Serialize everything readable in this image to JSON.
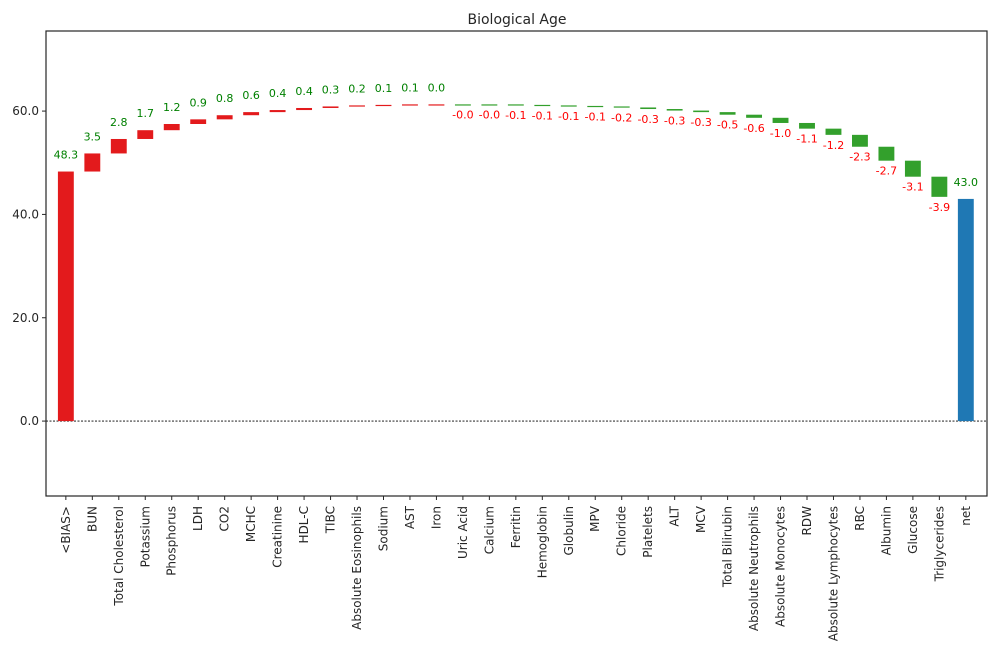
{
  "chart_data": {
    "type": "bar",
    "title": "Biological Age",
    "xlabel": "",
    "ylabel": "",
    "ylim": [
      -14.5,
      75.5
    ],
    "yticks": [
      0,
      20,
      40,
      60
    ],
    "ytick_labels": [
      "0.0",
      "20.0",
      "40.0",
      "60.0"
    ],
    "grid": false,
    "legend": "none",
    "baseline": {
      "y": 0,
      "style": "dotted"
    },
    "colors": {
      "positive": "#e31a1c",
      "negative": "#33a02c",
      "total": "#1f78b4",
      "positive_label": "#008000",
      "negative_label": "#ff0000"
    },
    "categories": [
      "<BIAS>",
      "BUN",
      "Total Cholesterol",
      "Potassium",
      "Phosphorus",
      "LDH",
      "CO2",
      "MCHC",
      "Creatinine",
      "HDL-C",
      "TIBC",
      "Absolute Eosinophils",
      "Sodium",
      "AST",
      "Iron",
      "Uric Acid",
      "Calcium",
      "Ferritin",
      "Hemoglobin",
      "Globulin",
      "MPV",
      "Chloride",
      "Platelets",
      "ALT",
      "MCV",
      "Total Bilirubin",
      "Absolute Neutrophils",
      "Absolute Monocytes",
      "RDW",
      "Absolute Lymphocytes",
      "RBC",
      "Albumin",
      "Glucose",
      "Triglycerides",
      "net"
    ],
    "values": [
      48.3,
      3.5,
      2.8,
      1.7,
      1.2,
      0.9,
      0.8,
      0.6,
      0.4,
      0.4,
      0.3,
      0.2,
      0.1,
      0.1,
      0.0,
      -0.0,
      -0.0,
      -0.1,
      -0.1,
      -0.1,
      -0.1,
      -0.2,
      -0.3,
      -0.3,
      -0.3,
      -0.5,
      -0.6,
      -1.0,
      -1.1,
      -1.2,
      -2.3,
      -2.7,
      -3.1,
      -3.9,
      43.0
    ],
    "labels": [
      "48.3",
      "3.5",
      "2.8",
      "1.7",
      "1.2",
      "0.9",
      "0.8",
      "0.6",
      "0.4",
      "0.4",
      "0.3",
      "0.2",
      "0.1",
      "0.1",
      "0.0",
      "-0.0",
      "-0.0",
      "-0.1",
      "-0.1",
      "-0.1",
      "-0.1",
      "-0.2",
      "-0.3",
      "-0.3",
      "-0.3",
      "-0.5",
      "-0.6",
      "-1.0",
      "-1.1",
      "-1.2",
      "-2.3",
      "-2.7",
      "-3.1",
      "-3.9",
      "43.0"
    ],
    "kinds": [
      "start",
      "delta",
      "delta",
      "delta",
      "delta",
      "delta",
      "delta",
      "delta",
      "delta",
      "delta",
      "delta",
      "delta",
      "delta",
      "delta",
      "delta",
      "delta",
      "delta",
      "delta",
      "delta",
      "delta",
      "delta",
      "delta",
      "delta",
      "delta",
      "delta",
      "delta",
      "delta",
      "delta",
      "delta",
      "delta",
      "delta",
      "delta",
      "delta",
      "delta",
      "total"
    ]
  }
}
